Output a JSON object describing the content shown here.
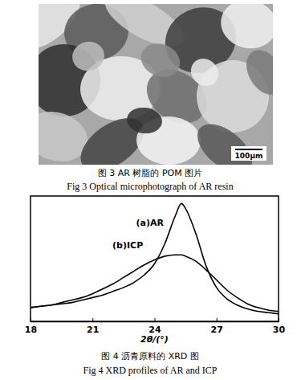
{
  "figure_3": {
    "scale_bar": "100μm",
    "caption": "图 3 AR 树脂的 POM 图片",
    "caption_en": "Fig 3 Optical microphotograph of AR resin"
  },
  "chart_data": {
    "type": "line",
    "x_label": "2θ/(°)",
    "x": [
      18,
      18.5,
      19,
      19.5,
      20,
      20.5,
      21,
      21.5,
      22,
      22.5,
      23,
      23.5,
      24,
      24.5,
      25,
      25.3,
      25.5,
      26,
      26.5,
      27,
      27.5,
      28,
      28.5,
      29,
      29.5,
      30
    ],
    "series": [
      {
        "name": "(a)AR",
        "color": "#000000",
        "values": [
          11,
          12,
          13,
          14,
          15,
          17,
          19,
          21,
          24,
          27,
          31,
          37,
          46,
          62,
          84,
          94,
          90,
          70,
          44,
          27,
          18,
          13,
          10,
          8,
          7,
          6
        ]
      },
      {
        "name": "(b)ICP",
        "color": "#000000",
        "values": [
          11,
          12,
          13,
          15,
          17,
          19,
          22,
          26,
          30,
          35,
          40,
          45,
          49,
          52,
          53,
          53,
          52,
          48,
          41,
          33,
          25,
          19,
          14,
          11,
          9,
          8
        ]
      }
    ],
    "xlim": [
      18,
      30
    ],
    "xticks": [
      18,
      21,
      24,
      27,
      30
    ],
    "ylim": [
      0,
      100
    ],
    "yticks": [],
    "tick_labels": "x",
    "caption": "图 4 沥青原料的 XRD 图",
    "caption_en": "Fig 4 XRD profiles of AR and ICP"
  }
}
